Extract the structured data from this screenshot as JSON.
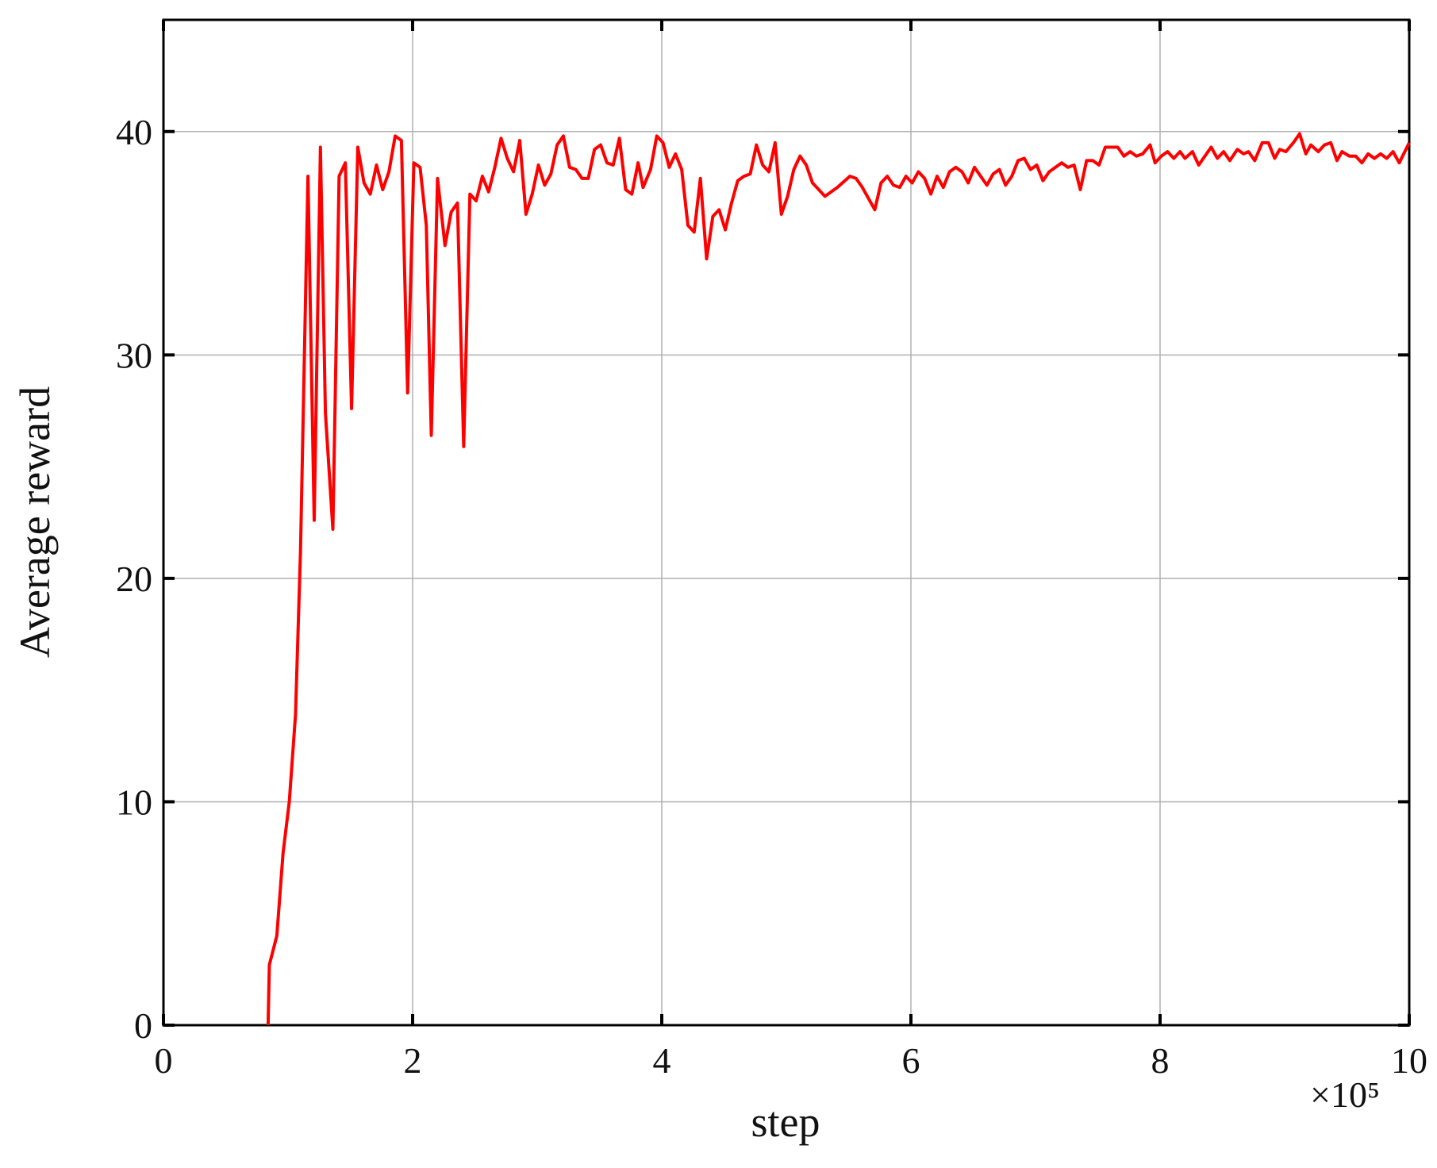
{
  "chart_data": {
    "type": "line",
    "x_label": "step",
    "y_label": "Average reward",
    "x_multiplier": "×10⁵",
    "color": "#ff0000",
    "grid": true,
    "xlim": [
      0,
      10
    ],
    "xticks": [
      0,
      2,
      4,
      6,
      8,
      10
    ],
    "ylim": [
      0,
      45
    ],
    "yticks": [
      0,
      10,
      20,
      30,
      40
    ],
    "x": [
      0.84,
      0.85,
      0.91,
      0.96,
      1.01,
      1.06,
      1.1,
      1.16,
      1.21,
      1.26,
      1.3,
      1.36,
      1.41,
      1.46,
      1.51,
      1.56,
      1.61,
      1.66,
      1.71,
      1.76,
      1.81,
      1.86,
      1.91,
      1.96,
      2.01,
      2.06,
      2.11,
      2.15,
      2.2,
      2.26,
      2.31,
      2.36,
      2.41,
      2.46,
      2.51,
      2.56,
      2.61,
      2.66,
      2.71,
      2.76,
      2.81,
      2.86,
      2.91,
      2.96,
      3.01,
      3.06,
      3.11,
      3.16,
      3.21,
      3.26,
      3.31,
      3.36,
      3.41,
      3.46,
      3.51,
      3.56,
      3.61,
      3.66,
      3.71,
      3.76,
      3.81,
      3.85,
      3.91,
      3.96,
      4.01,
      4.06,
      4.11,
      4.16,
      4.21,
      4.26,
      4.31,
      4.36,
      4.41,
      4.46,
      4.51,
      4.56,
      4.61,
      4.66,
      4.71,
      4.76,
      4.81,
      4.86,
      4.91,
      4.96,
      5.01,
      5.06,
      5.11,
      5.16,
      5.21,
      5.31,
      5.41,
      5.51,
      5.56,
      5.61,
      5.67,
      5.71,
      5.76,
      5.81,
      5.86,
      5.91,
      5.96,
      6.01,
      6.06,
      6.11,
      6.16,
      6.21,
      6.26,
      6.31,
      6.36,
      6.41,
      6.46,
      6.51,
      6.56,
      6.61,
      6.66,
      6.71,
      6.76,
      6.81,
      6.86,
      6.91,
      6.96,
      7.01,
      7.06,
      7.11,
      7.16,
      7.21,
      7.26,
      7.31,
      7.36,
      7.41,
      7.46,
      7.51,
      7.56,
      7.61,
      7.66,
      7.71,
      7.76,
      7.81,
      7.86,
      7.92,
      7.96,
      8.01,
      8.06,
      8.11,
      8.16,
      8.2,
      8.26,
      8.31,
      8.36,
      8.41,
      8.46,
      8.51,
      8.56,
      8.62,
      8.67,
      8.71,
      8.76,
      8.82,
      8.87,
      8.92,
      8.96,
      9.01,
      9.07,
      9.12,
      9.17,
      9.21,
      9.27,
      9.32,
      9.37,
      9.42,
      9.46,
      9.52,
      9.57,
      9.62,
      9.67,
      9.72,
      9.77,
      9.82,
      9.87,
      9.92,
      10
    ],
    "values": [
      0,
      2.7,
      4.0,
      7.7,
      10,
      13.9,
      21.2,
      38,
      22.6,
      39.3,
      27.4,
      22.2,
      38,
      38.6,
      27.6,
      39.3,
      37.7,
      37.2,
      38.5,
      37.4,
      38.2,
      39.8,
      39.6,
      28.3,
      38.6,
      38.4,
      35.8,
      26.4,
      37.9,
      34.9,
      36.4,
      36.8,
      25.9,
      37.2,
      36.9,
      38,
      37.3,
      38.4,
      39.7,
      38.8,
      38.2,
      39.6,
      36.3,
      37.2,
      38.5,
      37.6,
      38.1,
      39.4,
      39.8,
      38.4,
      38.3,
      37.9,
      37.9,
      39.2,
      39.4,
      38.6,
      38.5,
      39.7,
      37.4,
      37.2,
      38.6,
      37.5,
      38.3,
      39.8,
      39.5,
      38.4,
      39,
      38.3,
      35.8,
      35.5,
      37.9,
      34.3,
      36.2,
      36.5,
      35.6,
      36.8,
      37.8,
      38,
      38.1,
      39.4,
      38.5,
      38.2,
      39.5,
      36.3,
      37.1,
      38.3,
      38.9,
      38.5,
      37.7,
      37.1,
      37.5,
      38,
      37.9,
      37.5,
      36.9,
      36.5,
      37.7,
      38,
      37.6,
      37.5,
      38,
      37.7,
      38.2,
      37.9,
      37.2,
      38,
      37.5,
      38.2,
      38.4,
      38.2,
      37.7,
      38.4,
      38,
      37.6,
      38.1,
      38.3,
      37.6,
      38,
      38.7,
      38.8,
      38.3,
      38.5,
      37.8,
      38.2,
      38.4,
      38.6,
      38.4,
      38.5,
      37.4,
      38.7,
      38.7,
      38.5,
      39.3,
      39.3,
      39.3,
      38.9,
      39.1,
      38.9,
      39,
      39.4,
      38.6,
      38.9,
      39.1,
      38.8,
      39.1,
      38.8,
      39.1,
      38.5,
      38.9,
      39.3,
      38.8,
      39.1,
      38.7,
      39.2,
      39,
      39.1,
      38.7,
      39.5,
      39.5,
      38.8,
      39.2,
      39.1,
      39.5,
      39.9,
      39,
      39.4,
      39.1,
      39.4,
      39.5,
      38.7,
      39.1,
      38.9,
      38.9,
      38.6,
      39,
      38.8,
      39,
      38.8,
      39.1,
      38.6,
      39.5
    ]
  }
}
